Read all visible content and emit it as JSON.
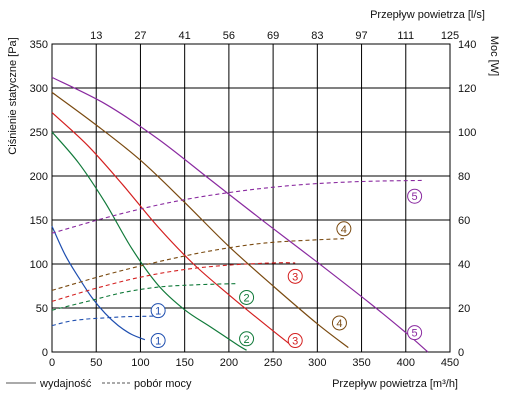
{
  "chart_data": {
    "type": "line",
    "xlabel_bottom": "Przepływ powietrza [m³/h]",
    "xlabel_top": "Przepływ powietrza [l/s]",
    "ylabel_left": "Ciśnienie statyczne [Pa]",
    "ylabel_right": "Moc [W]",
    "xlim": [
      0,
      450
    ],
    "ylim_left": [
      0,
      350
    ],
    "ylim_right": [
      0,
      140
    ],
    "x_ticks": [
      0,
      50,
      100,
      150,
      200,
      250,
      300,
      350,
      400,
      450
    ],
    "y_left_ticks": [
      0,
      50,
      100,
      150,
      200,
      250,
      300,
      350
    ],
    "y_right_ticks": [
      0,
      20,
      40,
      60,
      80,
      100,
      120,
      140
    ],
    "top_tick_labels": [
      "13",
      "27",
      "41",
      "56",
      "69",
      "83",
      "97",
      "111",
      "125"
    ],
    "grid": true,
    "legend": {
      "position": "bottom-left",
      "items": [
        {
          "label": "wydajność",
          "style": "solid"
        },
        {
          "label": "pobór mocy",
          "style": "dashed"
        }
      ]
    },
    "series": [
      {
        "id": "1",
        "color": "#1f4fb0",
        "pressure": [
          [
            0,
            143
          ],
          [
            15,
            110
          ],
          [
            30,
            85
          ],
          [
            45,
            62
          ],
          [
            60,
            44
          ],
          [
            75,
            30
          ],
          [
            90,
            20
          ],
          [
            105,
            14
          ]
        ],
        "power": [
          [
            0,
            12
          ],
          [
            20,
            14
          ],
          [
            40,
            15
          ],
          [
            60,
            15.5
          ],
          [
            80,
            16
          ],
          [
            100,
            16.2
          ],
          [
            115,
            16.3
          ]
        ]
      },
      {
        "id": "2",
        "color": "#117a3a",
        "pressure": [
          [
            0,
            250
          ],
          [
            30,
            215
          ],
          [
            60,
            170
          ],
          [
            90,
            118
          ],
          [
            120,
            76
          ],
          [
            150,
            48
          ],
          [
            180,
            28
          ],
          [
            210,
            8
          ],
          [
            220,
            2
          ]
        ],
        "power": [
          [
            0,
            19
          ],
          [
            40,
            23
          ],
          [
            80,
            27
          ],
          [
            120,
            29.5
          ],
          [
            160,
            30.5
          ],
          [
            200,
            31
          ],
          [
            210,
            31
          ]
        ]
      },
      {
        "id": "3",
        "color": "#d42020",
        "pressure": [
          [
            0,
            272
          ],
          [
            40,
            235
          ],
          [
            80,
            190
          ],
          [
            120,
            142
          ],
          [
            160,
            100
          ],
          [
            200,
            65
          ],
          [
            240,
            32
          ],
          [
            270,
            8
          ]
        ],
        "power": [
          [
            0,
            23
          ],
          [
            50,
            29
          ],
          [
            100,
            34
          ],
          [
            150,
            37.5
          ],
          [
            200,
            39.5
          ],
          [
            250,
            40.5
          ],
          [
            275,
            40.5
          ]
        ]
      },
      {
        "id": "4",
        "color": "#7a4a10",
        "pressure": [
          [
            0,
            295
          ],
          [
            50,
            258
          ],
          [
            100,
            218
          ],
          [
            150,
            170
          ],
          [
            200,
            120
          ],
          [
            250,
            75
          ],
          [
            300,
            32
          ],
          [
            335,
            5
          ]
        ],
        "power": [
          [
            0,
            28
          ],
          [
            60,
            35
          ],
          [
            120,
            41
          ],
          [
            180,
            46
          ],
          [
            240,
            49.5
          ],
          [
            300,
            51
          ],
          [
            330,
            51.5
          ]
        ]
      },
      {
        "id": "5",
        "color": "#8a2aa0",
        "pressure": [
          [
            0,
            312
          ],
          [
            60,
            282
          ],
          [
            120,
            242
          ],
          [
            180,
            195
          ],
          [
            240,
            148
          ],
          [
            300,
            102
          ],
          [
            360,
            55
          ],
          [
            400,
            22
          ],
          [
            425,
            0
          ]
        ],
        "power": [
          [
            0,
            54
          ],
          [
            70,
            62
          ],
          [
            140,
            68.5
          ],
          [
            210,
            73
          ],
          [
            280,
            76
          ],
          [
            350,
            77.5
          ],
          [
            420,
            78
          ]
        ]
      }
    ],
    "series_labels_lower": [
      {
        "id": "1",
        "x": 120,
        "y": 13
      },
      {
        "id": "2",
        "x": 220,
        "y": 15
      },
      {
        "id": "3",
        "x": 275,
        "y": 13
      },
      {
        "id": "4",
        "x": 325,
        "y": 33
      },
      {
        "id": "5",
        "x": 410,
        "y": 22
      }
    ],
    "series_labels_upper": [
      {
        "id": "1",
        "x": 120,
        "y": 47
      },
      {
        "id": "2",
        "x": 220,
        "y": 62
      },
      {
        "id": "3",
        "x": 275,
        "y": 86
      },
      {
        "id": "4",
        "x": 330,
        "y": 140
      },
      {
        "id": "5",
        "x": 410,
        "y": 177
      }
    ]
  }
}
